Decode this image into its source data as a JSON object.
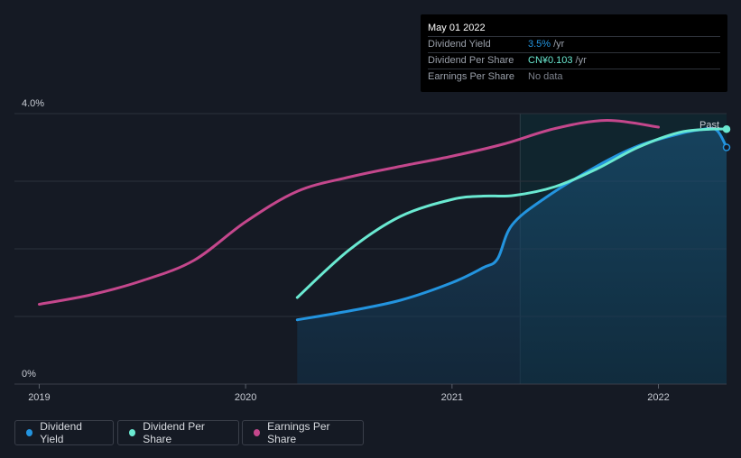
{
  "tooltip": {
    "date": "May 01 2022",
    "rows": [
      {
        "label": "Dividend Yield",
        "value": "3.5%",
        "unit": "/yr",
        "color": "#2394df"
      },
      {
        "label": "Dividend Per Share",
        "value": "CN¥0.103",
        "unit": "/yr",
        "color": "#6ae9d1"
      },
      {
        "label": "Earnings Per Share",
        "value": "No data",
        "unit": "",
        "color": "#7c818b"
      }
    ]
  },
  "chart_data": {
    "type": "line",
    "title": "",
    "y_axis": {
      "labels": [
        "4.0%",
        "0%"
      ],
      "range": [
        0,
        4.0
      ],
      "unit": "%"
    },
    "x_axis": {
      "labels": [
        "2019",
        "2020",
        "2021",
        "2022"
      ],
      "range": [
        2018.88,
        2022.33
      ]
    },
    "past_label": "Past",
    "past_region_start": 2021.33,
    "series": [
      {
        "name": "Dividend Yield",
        "color": "#2394df",
        "filled": true,
        "points": [
          [
            2020.25,
            0.95
          ],
          [
            2020.5,
            1.08
          ],
          [
            2020.75,
            1.24
          ],
          [
            2021.0,
            1.5
          ],
          [
            2021.15,
            1.72
          ],
          [
            2021.22,
            1.85
          ],
          [
            2021.29,
            2.35
          ],
          [
            2021.45,
            2.75
          ],
          [
            2021.7,
            3.22
          ],
          [
            2021.9,
            3.52
          ],
          [
            2022.1,
            3.7
          ],
          [
            2022.2,
            3.76
          ],
          [
            2022.28,
            3.76
          ],
          [
            2022.33,
            3.5
          ]
        ]
      },
      {
        "name": "Dividend Per Share",
        "color": "#6ae9d1",
        "filled": false,
        "points": [
          [
            2020.25,
            1.28
          ],
          [
            2020.5,
            1.98
          ],
          [
            2020.75,
            2.48
          ],
          [
            2021.0,
            2.73
          ],
          [
            2021.15,
            2.78
          ],
          [
            2021.3,
            2.79
          ],
          [
            2021.5,
            2.92
          ],
          [
            2021.7,
            3.18
          ],
          [
            2021.9,
            3.5
          ],
          [
            2022.1,
            3.72
          ],
          [
            2022.25,
            3.77
          ],
          [
            2022.33,
            3.77
          ]
        ]
      },
      {
        "name": "Earnings Per Share",
        "color": "#c4478c",
        "filled": false,
        "points": [
          [
            2019.0,
            1.18
          ],
          [
            2019.25,
            1.32
          ],
          [
            2019.5,
            1.53
          ],
          [
            2019.75,
            1.83
          ],
          [
            2020.0,
            2.4
          ],
          [
            2020.25,
            2.85
          ],
          [
            2020.5,
            3.06
          ],
          [
            2020.75,
            3.22
          ],
          [
            2021.0,
            3.37
          ],
          [
            2021.25,
            3.55
          ],
          [
            2021.5,
            3.78
          ],
          [
            2021.75,
            3.9
          ],
          [
            2022.0,
            3.8
          ]
        ]
      }
    ]
  },
  "legend": [
    {
      "label": "Dividend Yield",
      "color": "#2394df"
    },
    {
      "label": "Dividend Per Share",
      "color": "#6ae9d1"
    },
    {
      "label": "Earnings Per Share",
      "color": "#c4478c"
    }
  ]
}
